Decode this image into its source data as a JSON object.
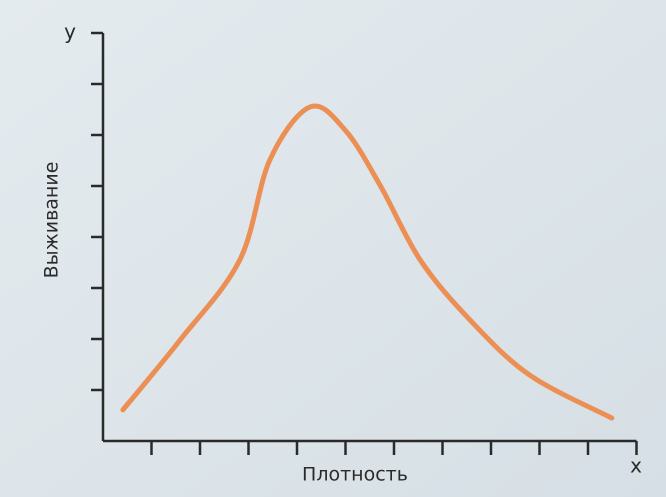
{
  "chart_data": {
    "type": "line",
    "x_axis_symbol": "х",
    "y_axis_symbol": "у",
    "xlabel": "Плотность",
    "ylabel": "Выживание",
    "x": [
      0.41,
      1.59,
      2.82,
      3.44,
      4.27,
      4.99,
      5.71,
      6.54,
      7.57,
      8.8,
      10.49
    ],
    "y": [
      0.61,
      1.98,
      3.55,
      5.51,
      6.55,
      6.1,
      5.02,
      3.55,
      2.37,
      1.29,
      0.45
    ],
    "color": "#eb8f55",
    "xlim": [
      0,
      11
    ],
    "ylim": [
      0,
      8
    ],
    "xticks": [
      1,
      2,
      3,
      4,
      5,
      6,
      7,
      8,
      9,
      10,
      11
    ],
    "yticks": [
      1,
      2,
      3,
      4,
      5,
      6,
      7,
      8
    ]
  }
}
